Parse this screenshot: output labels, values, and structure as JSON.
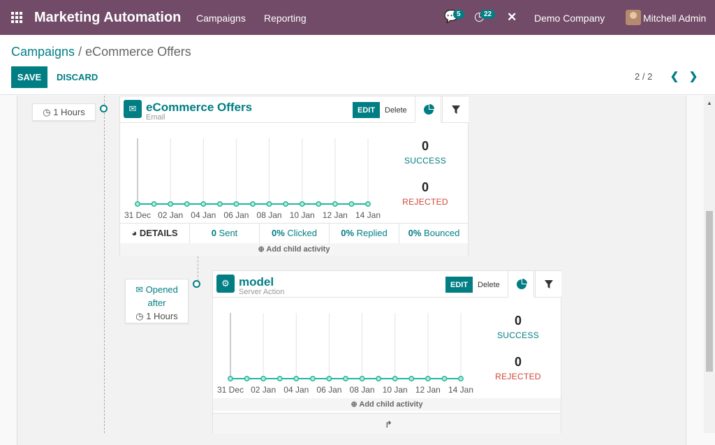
{
  "navbar": {
    "app_name": "Marketing Automation",
    "menu": [
      "Campaigns",
      "Reporting"
    ],
    "messages_count": "5",
    "activities_count": "22",
    "company": "Demo Company",
    "user": "Mitchell Admin"
  },
  "breadcrumb": {
    "parent": "Campaigns",
    "separator": "/",
    "current": "eCommerce Offers"
  },
  "buttons": {
    "save": "SAVE",
    "discard": "DISCARD"
  },
  "pager": {
    "value": "2 / 2"
  },
  "activities": [
    {
      "trigger_time": "1 Hours",
      "title": "eCommerce Offers",
      "type": "Email",
      "edit": "EDIT",
      "delete": "Delete",
      "success_value": "0",
      "success_label": "SUCCESS",
      "rejected_value": "0",
      "rejected_label": "REJECTED",
      "stats": {
        "details": "DETAILS",
        "sent_value": "0",
        "sent_label": "Sent",
        "clicked_value": "0%",
        "clicked_label": "Clicked",
        "replied_value": "0%",
        "replied_label": "Replied",
        "bounced_value": "0%",
        "bounced_label": "Bounced"
      },
      "add_child": "Add child activity"
    },
    {
      "trigger_label": "Opened",
      "trigger_after": "after",
      "trigger_time": "1 Hours",
      "title": "model",
      "type": "Server Action",
      "edit": "EDIT",
      "delete": "Delete",
      "success_value": "0",
      "success_label": "SUCCESS",
      "rejected_value": "0",
      "rejected_label": "REJECTED",
      "add_child": "Add child activity"
    }
  ],
  "chart_data": [
    {
      "type": "line",
      "x": [
        "31 Dec",
        "01 Jan",
        "02 Jan",
        "03 Jan",
        "04 Jan",
        "05 Jan",
        "06 Jan",
        "07 Jan",
        "08 Jan",
        "09 Jan",
        "10 Jan",
        "11 Jan",
        "12 Jan",
        "13 Jan",
        "14 Jan"
      ],
      "x_tick_labels": [
        "31 Dec",
        "02 Jan",
        "04 Jan",
        "06 Jan",
        "08 Jan",
        "10 Jan",
        "12 Jan",
        "14 Jan"
      ],
      "series": [
        {
          "values": [
            0,
            0,
            0,
            0,
            0,
            0,
            0,
            0,
            0,
            0,
            0,
            0,
            0,
            0,
            0
          ]
        }
      ],
      "grid": "vertical",
      "colors": {
        "line": "#21b799"
      }
    },
    {
      "type": "line",
      "x": [
        "31 Dec",
        "01 Jan",
        "02 Jan",
        "03 Jan",
        "04 Jan",
        "05 Jan",
        "06 Jan",
        "07 Jan",
        "08 Jan",
        "09 Jan",
        "10 Jan",
        "11 Jan",
        "12 Jan",
        "13 Jan",
        "14 Jan"
      ],
      "x_tick_labels": [
        "31 Dec",
        "02 Jan",
        "04 Jan",
        "06 Jan",
        "08 Jan",
        "10 Jan",
        "12 Jan",
        "14 Jan"
      ],
      "series": [
        {
          "values": [
            0,
            0,
            0,
            0,
            0,
            0,
            0,
            0,
            0,
            0,
            0,
            0,
            0,
            0,
            0
          ]
        }
      ],
      "grid": "vertical",
      "colors": {
        "line": "#21b799"
      }
    }
  ],
  "colors": {
    "brand": "#714b67",
    "primary": "#017e84",
    "success": "#017e84",
    "rejected": "#d04437"
  }
}
